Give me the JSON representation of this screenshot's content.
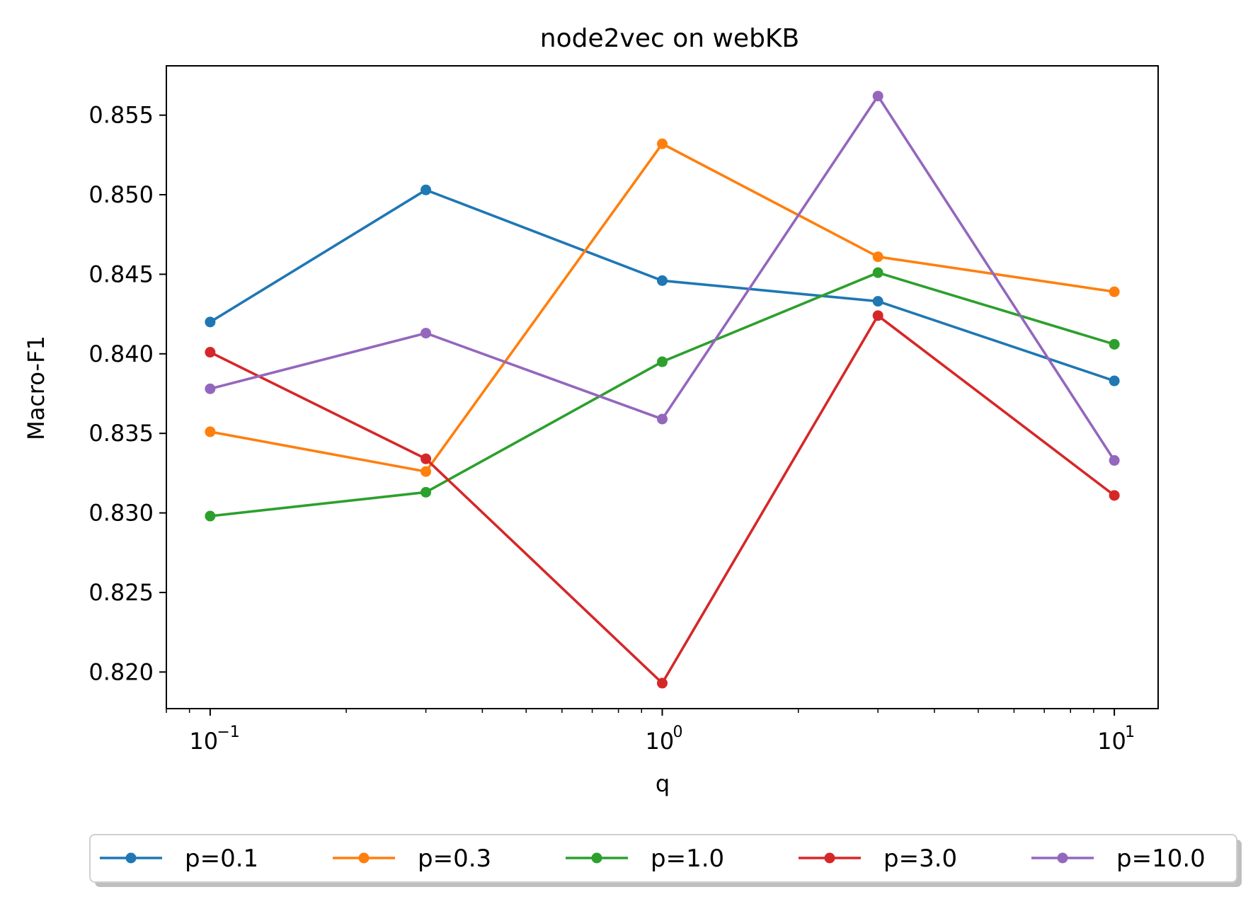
{
  "chart_data": {
    "type": "line",
    "title": "node2vec on webKB",
    "xlabel": "q",
    "ylabel": "Macro-F1",
    "x_scale": "log",
    "x": [
      0.1,
      0.3,
      1.0,
      3.0,
      10.0
    ],
    "xlim": [
      0.08,
      12.5
    ],
    "ylim": [
      0.8177,
      0.8581
    ],
    "x_ticks": [
      {
        "value": 0.1,
        "base": "10",
        "exp": "−1"
      },
      {
        "value": 1.0,
        "base": "10",
        "exp": "0"
      },
      {
        "value": 10.0,
        "base": "10",
        "exp": "1"
      }
    ],
    "y_ticks": [
      {
        "value": 0.82,
        "label": "0.820"
      },
      {
        "value": 0.825,
        "label": "0.825"
      },
      {
        "value": 0.83,
        "label": "0.830"
      },
      {
        "value": 0.835,
        "label": "0.835"
      },
      {
        "value": 0.84,
        "label": "0.840"
      },
      {
        "value": 0.845,
        "label": "0.845"
      },
      {
        "value": 0.85,
        "label": "0.850"
      },
      {
        "value": 0.855,
        "label": "0.855"
      }
    ],
    "grid": false,
    "legend_position": "bottom-center",
    "series": [
      {
        "name": "p=0.1",
        "color": "#1f77b4",
        "values": [
          0.842,
          0.8503,
          0.8446,
          0.8433,
          0.8383
        ]
      },
      {
        "name": "p=0.3",
        "color": "#ff7f0e",
        "values": [
          0.8351,
          0.8326,
          0.8532,
          0.8461,
          0.8439
        ]
      },
      {
        "name": "p=1.0",
        "color": "#2ca02c",
        "values": [
          0.8298,
          0.8313,
          0.8395,
          0.8451,
          0.8406
        ]
      },
      {
        "name": "p=3.0",
        "color": "#d62728",
        "values": [
          0.8401,
          0.8334,
          0.8193,
          0.8424,
          0.8311
        ]
      },
      {
        "name": "p=10.0",
        "color": "#9467bd",
        "values": [
          0.8378,
          0.8413,
          0.8359,
          0.8562,
          0.8333
        ]
      }
    ]
  }
}
